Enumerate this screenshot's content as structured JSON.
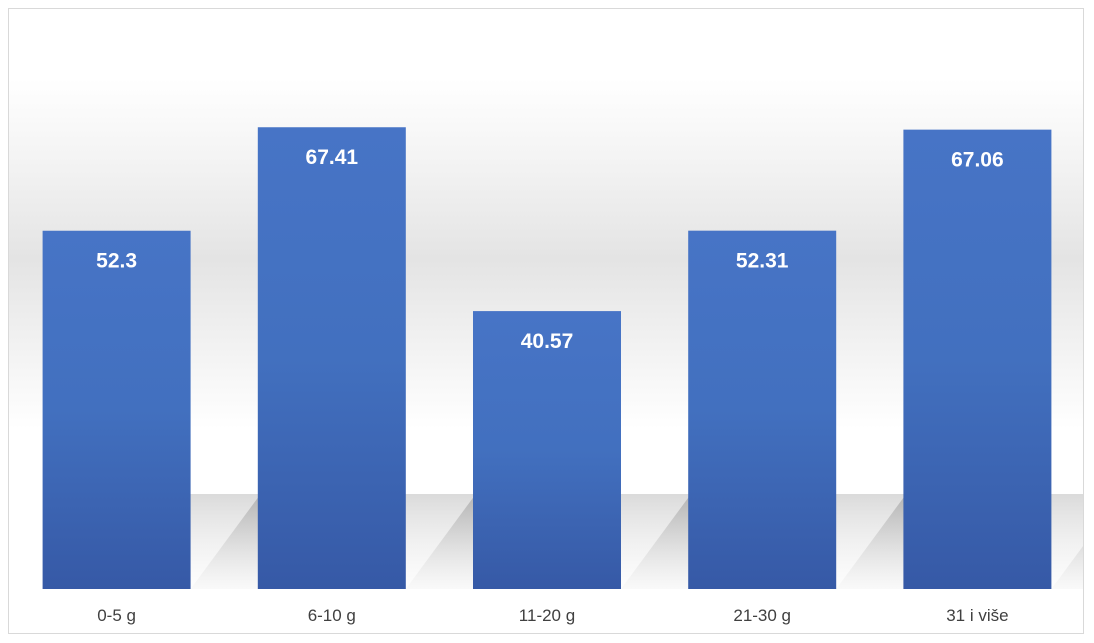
{
  "chart_data": {
    "type": "bar",
    "categories": [
      "0-5 g",
      "6-10 g",
      "11-20 g",
      "21-30 g",
      "31 i više"
    ],
    "values": [
      52.3,
      67.41,
      40.57,
      52.31,
      67.06
    ],
    "value_labels": [
      "52.3",
      "67.41",
      "40.57",
      "52.31",
      "67.06"
    ],
    "title": "",
    "xlabel": "",
    "ylabel": "",
    "ylim": [
      0,
      75
    ],
    "grid": false,
    "legend": "none",
    "bar_color": "#4472C4",
    "label_color": "#ffffff",
    "category_label_color": "#404040"
  }
}
